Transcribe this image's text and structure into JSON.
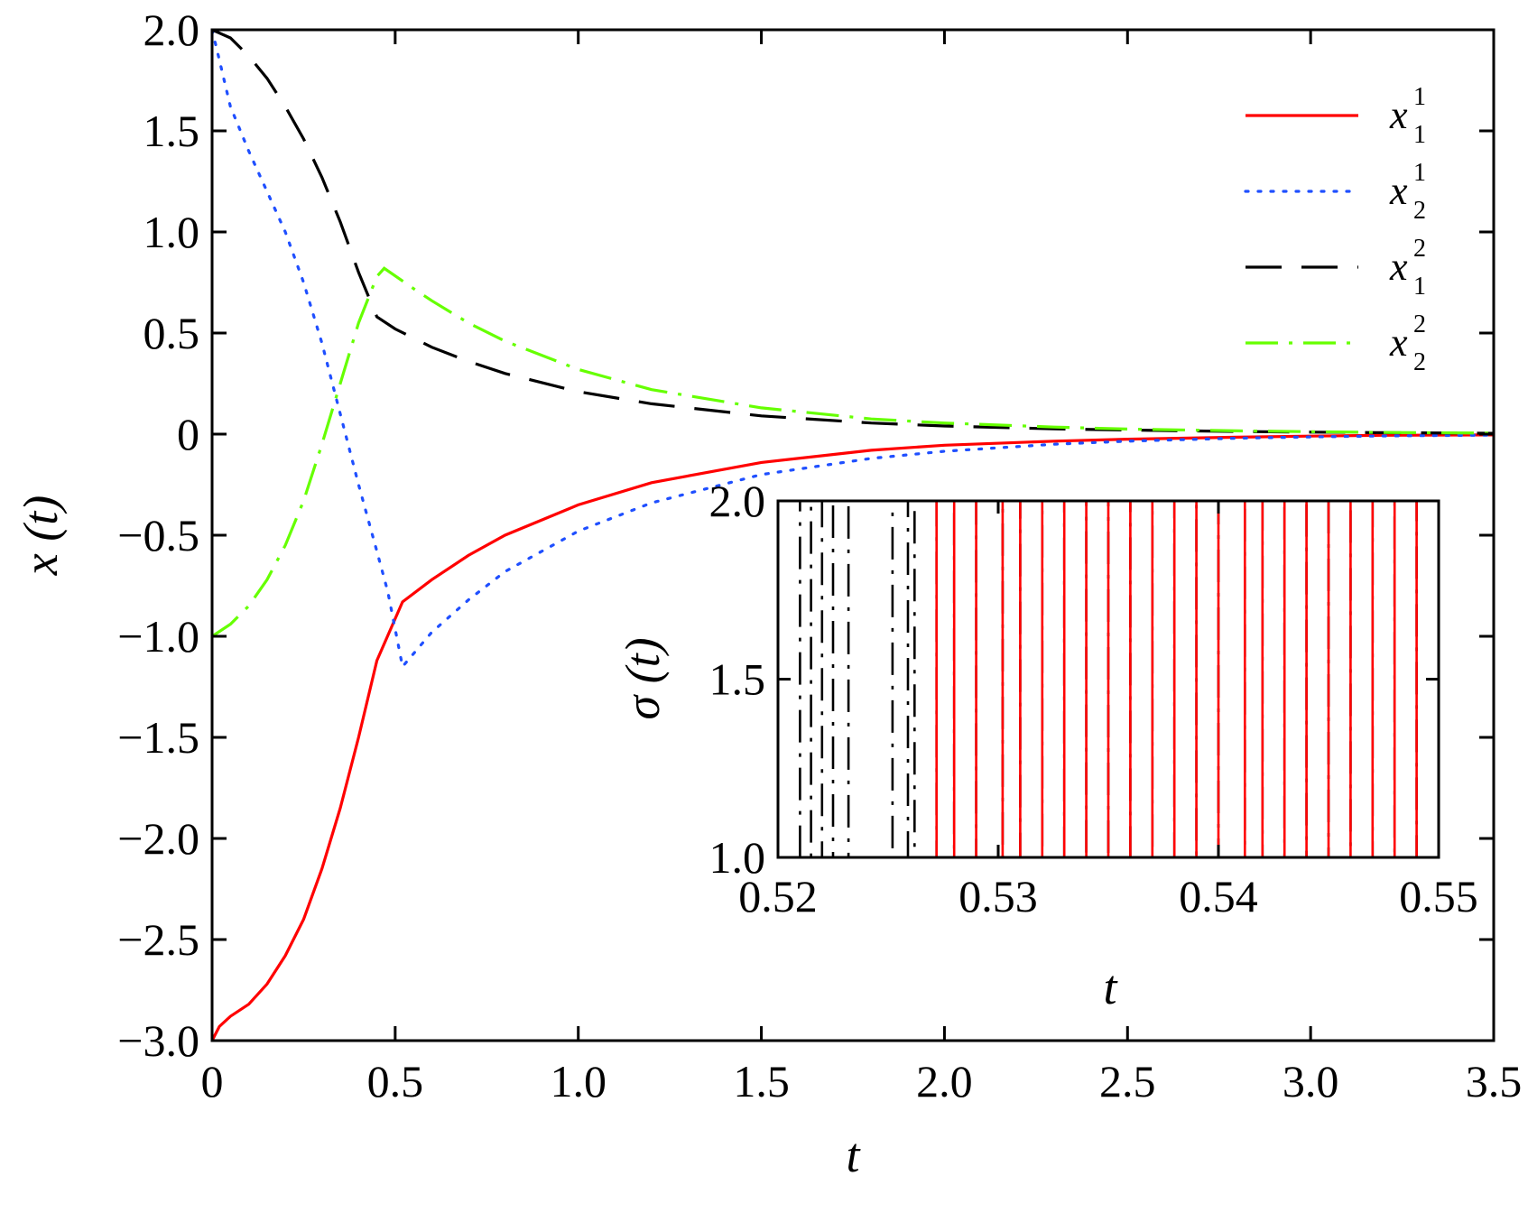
{
  "chart_data": [
    {
      "type": "line",
      "xlabel": "t",
      "ylabel": "x (t)",
      "xlim": [
        0,
        3.5
      ],
      "ylim": [
        -3.0,
        2.0
      ],
      "x_ticks": [
        0,
        0.5,
        1.0,
        1.5,
        2.0,
        2.5,
        3.0,
        3.5
      ],
      "x_tick_labels": [
        "0",
        "0.5",
        "1.0",
        "1.5",
        "2.0",
        "2.5",
        "3.0",
        "3.5"
      ],
      "y_ticks": [
        -3.0,
        -2.5,
        -2.0,
        -1.5,
        -1.0,
        -0.5,
        0,
        0.5,
        1.0,
        1.5,
        2.0
      ],
      "y_tick_labels": [
        "−3.0",
        "−2.5",
        "−2.0",
        "−1.5",
        "−1.0",
        "−0.5",
        "0",
        "0.5",
        "1.0",
        "1.5",
        "2.0"
      ],
      "grid": false,
      "legend_position": "top-right",
      "series": [
        {
          "name": "x",
          "sub": "1",
          "sup": "1",
          "color": "#ff0000",
          "dash": "solid",
          "x": [
            0,
            0.02,
            0.05,
            0.1,
            0.15,
            0.2,
            0.25,
            0.3,
            0.35,
            0.4,
            0.45,
            0.52,
            0.6,
            0.7,
            0.8,
            1.0,
            1.2,
            1.5,
            1.8,
            2.0,
            2.3,
            2.5,
            2.8,
            3.0,
            3.2,
            3.5
          ],
          "y": [
            -3.0,
            -2.93,
            -2.88,
            -2.82,
            -2.72,
            -2.58,
            -2.4,
            -2.15,
            -1.85,
            -1.5,
            -1.12,
            -0.83,
            -0.72,
            -0.6,
            -0.5,
            -0.35,
            -0.24,
            -0.14,
            -0.08,
            -0.055,
            -0.035,
            -0.025,
            -0.015,
            -0.01,
            -0.006,
            -0.004
          ]
        },
        {
          "name": "x",
          "sub": "2",
          "sup": "1",
          "color": "#1f4fff",
          "dash": "dotted",
          "x": [
            0,
            0.02,
            0.05,
            0.1,
            0.15,
            0.2,
            0.25,
            0.3,
            0.35,
            0.4,
            0.45,
            0.48,
            0.52,
            0.6,
            0.7,
            0.8,
            1.0,
            1.2,
            1.5,
            1.8,
            2.0,
            2.3,
            2.5,
            2.8,
            3.0,
            3.2,
            3.5
          ],
          "y": [
            2.0,
            1.85,
            1.62,
            1.4,
            1.2,
            1.0,
            0.75,
            0.45,
            0.1,
            -0.25,
            -0.58,
            -0.78,
            -1.15,
            -0.98,
            -0.82,
            -0.68,
            -0.48,
            -0.34,
            -0.2,
            -0.12,
            -0.085,
            -0.05,
            -0.035,
            -0.02,
            -0.014,
            -0.009,
            -0.005
          ]
        },
        {
          "name": "x",
          "sub": "1",
          "sup": "2",
          "color": "#000000",
          "dash": "dashed",
          "x": [
            0,
            0.05,
            0.1,
            0.15,
            0.2,
            0.25,
            0.3,
            0.35,
            0.4,
            0.45,
            0.5,
            0.6,
            0.7,
            0.8,
            1.0,
            1.2,
            1.5,
            1.8,
            2.0,
            2.3,
            2.5,
            2.8,
            3.0,
            3.2,
            3.5
          ],
          "y": [
            2.0,
            1.96,
            1.87,
            1.76,
            1.62,
            1.46,
            1.27,
            1.05,
            0.8,
            0.58,
            0.52,
            0.43,
            0.36,
            0.3,
            0.21,
            0.15,
            0.09,
            0.055,
            0.04,
            0.026,
            0.02,
            0.013,
            0.01,
            0.007,
            0.004
          ]
        },
        {
          "name": "x",
          "sub": "2",
          "sup": "2",
          "color": "#66ff00",
          "dash": "dashdot",
          "x": [
            0,
            0.05,
            0.1,
            0.15,
            0.2,
            0.25,
            0.3,
            0.35,
            0.4,
            0.45,
            0.47,
            0.55,
            0.6,
            0.7,
            0.8,
            1.0,
            1.2,
            1.5,
            1.8,
            2.0,
            2.3,
            2.5,
            2.8,
            3.0,
            3.2,
            3.5
          ],
          "y": [
            -1.0,
            -0.94,
            -0.85,
            -0.72,
            -0.55,
            -0.33,
            -0.05,
            0.25,
            0.55,
            0.78,
            0.82,
            0.72,
            0.66,
            0.55,
            0.46,
            0.32,
            0.22,
            0.13,
            0.075,
            0.055,
            0.035,
            0.025,
            0.016,
            0.012,
            0.008,
            0.005
          ]
        }
      ]
    },
    {
      "type": "line",
      "xlabel": "t",
      "ylabel": "σ (t)",
      "xlim": [
        0.52,
        0.55
      ],
      "ylim": [
        1.0,
        2.0
      ],
      "x_ticks": [
        0.52,
        0.53,
        0.54,
        0.55
      ],
      "x_tick_labels": [
        "0.52",
        "0.53",
        "0.54",
        "0.55"
      ],
      "y_ticks": [
        1.0,
        1.5,
        2.0
      ],
      "y_tick_labels": [
        "1.0",
        "1.5",
        "2.0"
      ],
      "grid": false,
      "series": [
        {
          "color": "#000000",
          "dash": "dashdot",
          "x": [
            0.52,
            0.521,
            0.521,
            0.5215,
            0.5215,
            0.522,
            0.522,
            0.5225,
            0.5225,
            0.5232,
            0.5232,
            0.5252,
            0.5252,
            0.5259,
            0.5259,
            0.5262,
            0.5262,
            0.5272,
            0.5272,
            0.528,
            0.528,
            0.529,
            0.529,
            0.5302,
            0.5302,
            0.531,
            0.531,
            0.532,
            0.532,
            0.533,
            0.533,
            0.534,
            0.534,
            0.535,
            0.535,
            0.536,
            0.536,
            0.537,
            0.537,
            0.538,
            0.538,
            0.539,
            0.539,
            0.54,
            0.54,
            0.5412,
            0.5412,
            0.542,
            0.542,
            0.543,
            0.543,
            0.544,
            0.544,
            0.545,
            0.545,
            0.546,
            0.546,
            0.547,
            0.547,
            0.548,
            0.548,
            0.549,
            0.549,
            0.55
          ],
          "y": [
            2,
            2,
            1,
            1,
            2,
            2,
            1,
            1,
            2,
            2,
            1,
            1,
            2,
            2,
            1,
            1,
            2,
            2,
            1,
            1,
            2,
            2,
            1,
            1,
            2,
            2,
            1,
            1,
            2,
            2,
            1,
            1,
            2,
            2,
            1,
            1,
            2,
            2,
            1,
            1,
            2,
            2,
            1,
            1,
            2,
            2,
            1,
            1,
            2,
            2,
            1,
            1,
            2,
            2,
            1,
            1,
            2,
            2,
            1,
            1,
            2,
            2,
            1,
            1
          ]
        },
        {
          "color": "#ff0000",
          "dash": "solid",
          "x": [
            0.52,
            0.5272,
            0.5272,
            0.528,
            0.528,
            0.529,
            0.529,
            0.5302,
            0.5302,
            0.531,
            0.531,
            0.532,
            0.532,
            0.533,
            0.533,
            0.534,
            0.534,
            0.535,
            0.535,
            0.536,
            0.536,
            0.537,
            0.537,
            0.538,
            0.538,
            0.539,
            0.539,
            0.54,
            0.54,
            0.5412,
            0.5412,
            0.542,
            0.542,
            0.543,
            0.543,
            0.544,
            0.544,
            0.545,
            0.545,
            0.546,
            0.546,
            0.547,
            0.547,
            0.548,
            0.548,
            0.549,
            0.549,
            0.55
          ],
          "y": [
            1,
            1,
            2,
            2,
            1,
            1,
            2,
            2,
            1,
            1,
            2,
            2,
            1,
            1,
            2,
            2,
            1,
            1,
            2,
            2,
            1,
            1,
            2,
            2,
            1,
            1,
            2,
            2,
            1,
            1,
            2,
            2,
            1,
            1,
            2,
            2,
            1,
            1,
            2,
            2,
            1,
            1,
            2,
            2,
            1,
            1,
            2,
            2
          ]
        }
      ]
    }
  ]
}
